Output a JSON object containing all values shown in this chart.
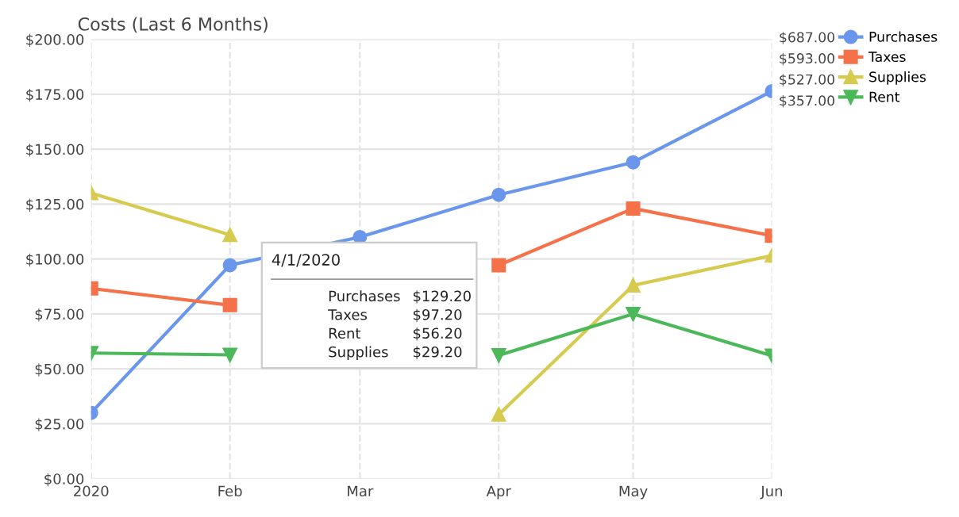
{
  "chart_data": {
    "type": "line",
    "title": "Costs (Last 6 Months)",
    "x": [
      "2020-01",
      "2020-02",
      "2020-03",
      "2020-04",
      "2020-05",
      "2020-06"
    ],
    "xlim": [
      "2020-01",
      "2020-06"
    ],
    "xticks": [
      {
        "value": "2020-01",
        "label": "2020"
      },
      {
        "value": "2020-02",
        "label": "Feb"
      },
      {
        "value": "2020-03",
        "label": "Mar"
      },
      {
        "value": "2020-04",
        "label": "Apr"
      },
      {
        "value": "2020-05",
        "label": "May"
      },
      {
        "value": "2020-06",
        "label": "Jun"
      }
    ],
    "ylim": [
      0,
      200
    ],
    "yticks": [
      {
        "value": 0,
        "label": "$0.00"
      },
      {
        "value": 25,
        "label": "$25.00"
      },
      {
        "value": 50,
        "label": "$50.00"
      },
      {
        "value": 75,
        "label": "$75.00"
      },
      {
        "value": 100,
        "label": "$100.00"
      },
      {
        "value": 125,
        "label": "$125.00"
      },
      {
        "value": 150,
        "label": "$150.00"
      },
      {
        "value": 175,
        "label": "$175.00"
      },
      {
        "value": 200,
        "label": "$200.00"
      }
    ],
    "series": [
      {
        "name": "Purchases",
        "color": "#6a96ec",
        "marker": "circle",
        "values": [
          30,
          97.2,
          110,
          129.2,
          144,
          176.4
        ]
      },
      {
        "name": "Taxes",
        "color": "#f4714a",
        "marker": "square",
        "values": [
          86.6,
          79,
          null,
          97.2,
          123,
          110.6
        ]
      },
      {
        "name": "Supplies",
        "color": "#d6cb4e",
        "marker": "triangle",
        "values": [
          130,
          111,
          null,
          29.2,
          88,
          101.6
        ]
      },
      {
        "name": "Rent",
        "color": "#4cb85a",
        "marker": "triangle-down",
        "values": [
          57.2,
          56.4,
          null,
          56.2,
          75,
          56
        ]
      }
    ],
    "annotations": [
      "$687.00",
      "$593.00",
      "$527.00",
      "$357.00",
      "4/1/2020",
      "Purchases",
      "$129.20",
      "Taxes",
      "$97.20",
      "Rent",
      "$56.20",
      "Supplies",
      "$29.20"
    ],
    "grid": true,
    "legend": "top right",
    "line_style": "solid"
  }
}
